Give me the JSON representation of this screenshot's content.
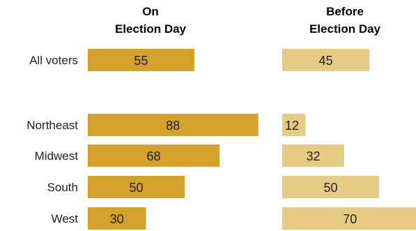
{
  "chart_data": {
    "type": "bar",
    "orientation": "horizontal",
    "title": "",
    "xlabel": "",
    "ylabel": "",
    "xlim": [
      0,
      100
    ],
    "categories": [
      "All voters",
      "Northeast",
      "Midwest",
      "South",
      "West"
    ],
    "series": [
      {
        "name": "On\nElection Day",
        "color": "#d4a22c",
        "values": [
          55,
          88,
          68,
          50,
          30
        ]
      },
      {
        "name": "Before\nElection Day",
        "color": "#e6cb85",
        "values": [
          45,
          12,
          32,
          50,
          70
        ]
      }
    ],
    "grid": false,
    "legend": "column headers above each panel"
  }
}
